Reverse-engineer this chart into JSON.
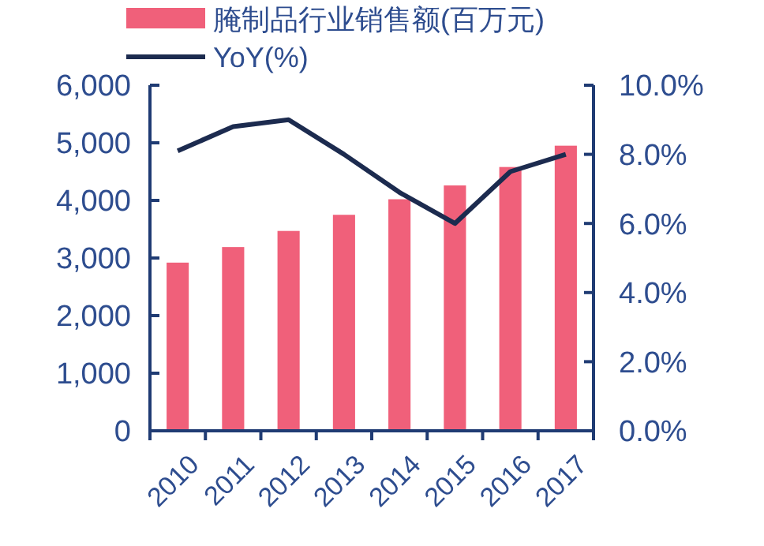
{
  "chart_data": {
    "type": "bar",
    "categories": [
      "2010",
      "2011",
      "2012",
      "2013",
      "2014",
      "2015",
      "2016",
      "2017"
    ],
    "series": [
      {
        "name": "腌制品行业销售额(百万元)",
        "color": "#f0607a",
        "values": [
          2920,
          3190,
          3470,
          3750,
          4020,
          4260,
          4580,
          4950
        ]
      },
      {
        "name": "YoY(%)",
        "type": "line",
        "axis": "y2",
        "color": "#1c2b4f",
        "values": [
          8.1,
          8.8,
          9.0,
          8.0,
          6.9,
          6.0,
          7.5,
          8.0
        ]
      }
    ],
    "ylim": [
      0,
      6000
    ],
    "yticks": [
      {
        "value": 0,
        "label": "0"
      },
      {
        "value": 1000,
        "label": "1,000"
      },
      {
        "value": 2000,
        "label": "2,000"
      },
      {
        "value": 3000,
        "label": "3,000"
      },
      {
        "value": 4000,
        "label": "4,000"
      },
      {
        "value": 5000,
        "label": "5,000"
      },
      {
        "value": 6000,
        "label": "6,000"
      }
    ],
    "y2lim": [
      0,
      10
    ],
    "y2ticks": [
      {
        "value": 0,
        "label": "0.0%"
      },
      {
        "value": 2,
        "label": "2.0%"
      },
      {
        "value": 4,
        "label": "4.0%"
      },
      {
        "value": 6,
        "label": "6.0%"
      },
      {
        "value": 8,
        "label": "8.0%"
      },
      {
        "value": 10,
        "label": "10.0%"
      }
    ],
    "legend": "top",
    "grid": false,
    "marker": "none",
    "line_style": "solid"
  }
}
